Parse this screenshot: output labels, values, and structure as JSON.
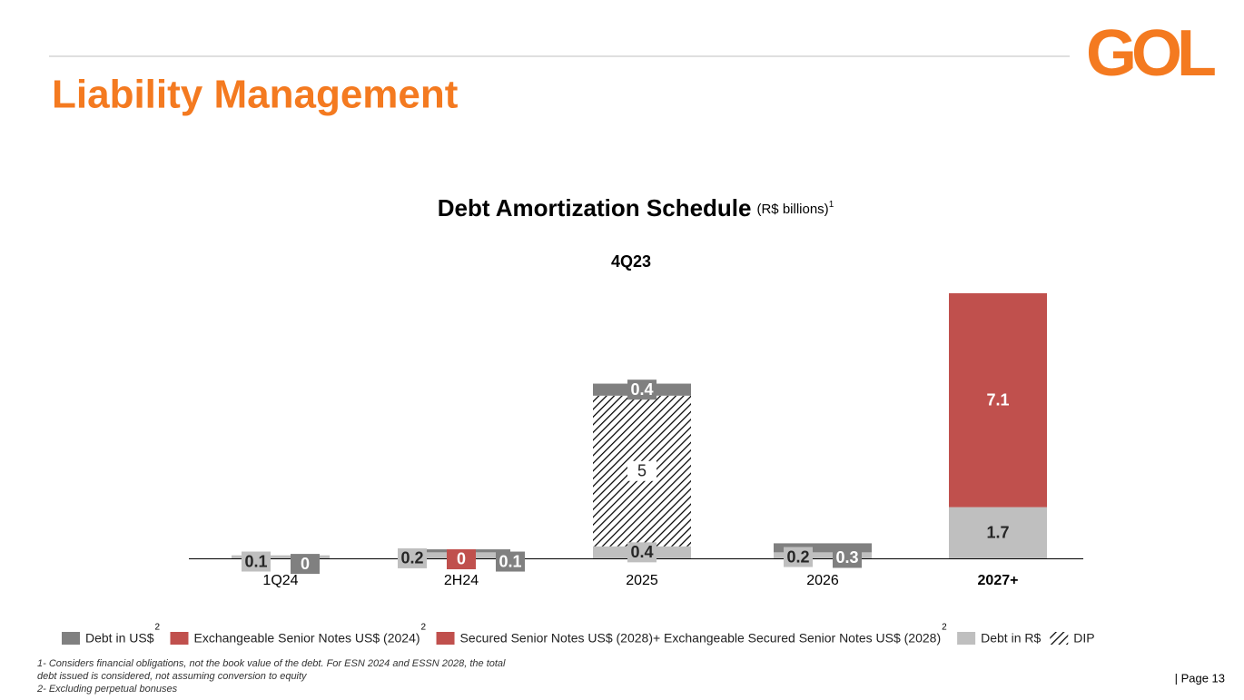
{
  "header": {
    "title": "Liability Management",
    "logo": "GOL"
  },
  "chart_data": {
    "type": "stacked_bar",
    "title": "Debt Amortization Schedule",
    "subtitle": "(R$ billions)",
    "title_note": "1",
    "period": "4Q23",
    "categories": [
      "1Q24",
      "2H24",
      "2025",
      "2026",
      "2027+"
    ],
    "legend_note": "2",
    "series": [
      {
        "name": "Debt in R$",
        "color": "#bfbfbf",
        "label_color": "#262626",
        "values": [
          0.1,
          0.2,
          0.4,
          0.2,
          1.7
        ]
      },
      {
        "name": "DIP",
        "color": "#ffffff",
        "pattern": "hatch",
        "label_color": "#262626",
        "values": [
          null,
          null,
          5.0,
          null,
          null
        ]
      },
      {
        "name": "Exchangeable Senior Notes US$ (2024)",
        "color": "#c0504d",
        "label_color": "#ffffff",
        "note": true,
        "values": [
          null,
          0.0,
          null,
          null,
          null
        ]
      },
      {
        "name": "Secured Senior Notes US$ (2028)+ Exchangeable Secured Senior Notes US$ (2028)",
        "color": "#c0504d",
        "label_color": "#ffffff",
        "note": true,
        "values": [
          null,
          null,
          null,
          null,
          7.1
        ]
      },
      {
        "name": "Debt in US$",
        "color": "#808080",
        "label_color": "#ffffff",
        "note": true,
        "values": [
          0.0,
          0.1,
          0.4,
          0.3,
          null
        ]
      }
    ],
    "legend_order": [
      4,
      2,
      3,
      0,
      1
    ],
    "value_labels": null
  },
  "footnotes": [
    "1- Considers financial obligations, not the book value of the debt. For ESN 2024 and ESSN 2028, the total",
    "debt issued is considered, not assuming conversion to equity",
    "2- Excluding perpetual bonuses"
  ],
  "page": "| Page 13"
}
